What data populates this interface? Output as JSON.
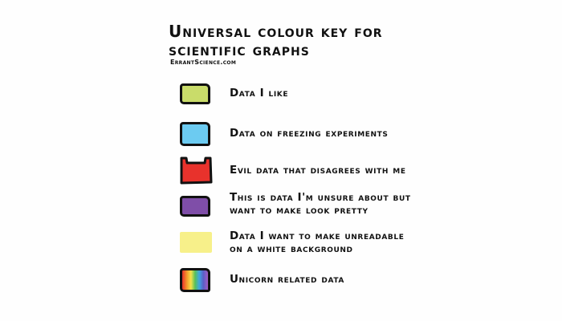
{
  "title": {
    "line1": "Universal colour key for",
    "line2": "scientific graphs"
  },
  "credit": "ErrantScience.com",
  "key_items": [
    {
      "label_line1": "Data I like",
      "label_line2": "",
      "color": "#c9dc6a",
      "icon": "yellow-green-square-icon"
    },
    {
      "label_line1": "Data on freezing experiments",
      "label_line2": "",
      "color": "#6ccbf1",
      "icon": "light-blue-square-icon"
    },
    {
      "label_line1": "Evil data that disagrees with me",
      "label_line2": "",
      "color": "#e8322c",
      "icon": "red-horned-square-icon"
    },
    {
      "label_line1": "This is data I'm unsure about but",
      "label_line2": "want to make look pretty",
      "color": "#7f4ea8",
      "icon": "purple-square-icon"
    },
    {
      "label_line1": "Data I want to make unreadable",
      "label_line2": "on a white background",
      "color": "#f7f08a",
      "icon": "pale-yellow-square-icon"
    },
    {
      "label_line1": "Unicorn related data",
      "label_line2": "",
      "color": "rainbow",
      "icon": "rainbow-square-icon"
    }
  ]
}
